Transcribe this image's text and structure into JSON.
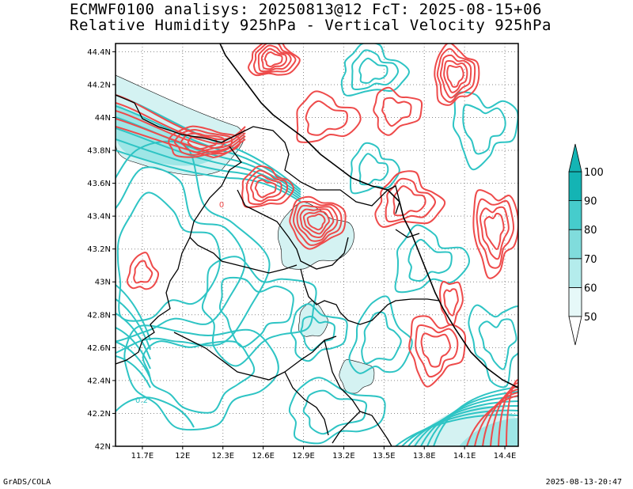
{
  "title_line1": "ECMWF0100 analisys: 20250813@12 FcT: 2025-08-15+06",
  "title_line2": "Relative Humidity 925hPa - Vertical Velocity 925hPa",
  "footer_left": "GrADS/COLA",
  "footer_right": "2025-08-13-20:47",
  "colors": {
    "humidity_contour": "#2ec4c4",
    "velocity_contour": "#ee4a4a",
    "border": "#000000",
    "shade_light": "#d4f2f2",
    "shade_mid": "#9ee6e6",
    "grid": "#888888"
  },
  "chart_data": {
    "type": "map-contour",
    "x_ticks": [
      "11.7E",
      "12E",
      "12.3E",
      "12.6E",
      "12.9E",
      "13.2E",
      "13.5E",
      "13.8E",
      "14.1E",
      "14.4E"
    ],
    "x_values": [
      11.7,
      12.0,
      12.3,
      12.6,
      12.9,
      13.2,
      13.5,
      13.8,
      14.1,
      14.4
    ],
    "y_ticks": [
      "42N",
      "42.2N",
      "42.4N",
      "42.6N",
      "42.8N",
      "43N",
      "43.2N",
      "43.4N",
      "43.6N",
      "43.8N",
      "44N",
      "44.2N",
      "44.4N"
    ],
    "y_values": [
      42.0,
      42.2,
      42.4,
      42.6,
      42.8,
      43.0,
      43.2,
      43.4,
      43.6,
      43.8,
      44.0,
      44.2,
      44.4
    ],
    "xlim": [
      11.5,
      14.5
    ],
    "ylim": [
      42.0,
      44.45
    ],
    "grid": true,
    "contour_labels": [
      "0",
      "0.2"
    ],
    "colorbar": {
      "levels": [
        50,
        60,
        70,
        80,
        90,
        100
      ],
      "labels": [
        "50",
        "60",
        "70",
        "80",
        "90",
        "100"
      ],
      "colors": [
        "#ffffff",
        "#e6f8f8",
        "#b4ecec",
        "#80dcdc",
        "#46cccc",
        "#14b4b4"
      ],
      "placement": "right"
    }
  }
}
